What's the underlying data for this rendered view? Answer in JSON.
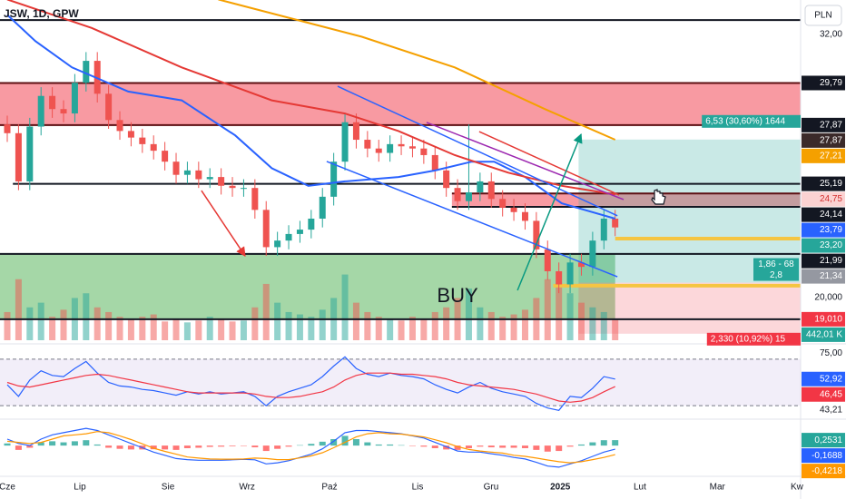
{
  "chart_data": {
    "type": "candlestick",
    "title": "JSW, 1D, GPW",
    "currency": "PLN",
    "xlim": [
      -2.58,
      281.9
    ],
    "xticks": [
      {
        "value": 0,
        "label": "Cze"
      },
      {
        "value": 25.8,
        "label": "Lip"
      },
      {
        "value": 57.1,
        "label": "Sie"
      },
      {
        "value": 85.2,
        "label": "Wrz"
      },
      {
        "value": 114.5,
        "label": "Paź"
      },
      {
        "value": 145.8,
        "label": "Lis"
      },
      {
        "value": 171.9,
        "label": "Gru"
      },
      {
        "value": 196.5,
        "label": "2025"
      },
      {
        "value": 224.8,
        "label": "Lut"
      },
      {
        "value": 252.3,
        "label": "Mar"
      },
      {
        "value": 280.6,
        "label": "Kw"
      }
    ],
    "ylim": [
      17.97,
      33.37
    ],
    "x": [
      0,
      4,
      8,
      12,
      16,
      20,
      24,
      28,
      32,
      36,
      40,
      44,
      48,
      52,
      56,
      60,
      64,
      68,
      72,
      76,
      80,
      84,
      88,
      92,
      96,
      100,
      104,
      108,
      112,
      116,
      120,
      124,
      128,
      132,
      136,
      140,
      144,
      148,
      152,
      156,
      160,
      164,
      168,
      172,
      176,
      180,
      184,
      188,
      192,
      196,
      200,
      204,
      208,
      212,
      216
    ],
    "open": [
      27.9,
      27.5,
      25.3,
      27.8,
      29.2,
      28.6,
      28.4,
      29.8,
      30.8,
      29.3,
      28.1,
      27.6,
      27.3,
      27.0,
      26.7,
      26.2,
      25.6,
      25.8,
      25.4,
      25.5,
      25.1,
      25.0,
      25.0,
      24.0,
      22.3,
      22.6,
      22.9,
      23.1,
      23.6,
      24.6,
      26.2,
      28.0,
      27.2,
      26.8,
      26.6,
      27.0,
      26.9,
      26.8,
      26.5,
      25.8,
      25.0,
      24.4,
      24.8,
      25.3,
      24.5,
      24.1,
      23.9,
      23.5,
      22.2,
      21.2,
      20.6,
      21.6,
      21.4,
      22.6,
      23.6
    ],
    "high": [
      28.3,
      27.9,
      28.2,
      29.6,
      29.6,
      29.0,
      30.2,
      31.2,
      31.2,
      29.7,
      28.5,
      28.0,
      27.7,
      27.4,
      27.1,
      26.6,
      26.2,
      26.2,
      25.9,
      25.9,
      25.5,
      25.4,
      25.4,
      24.4,
      23.0,
      23.3,
      23.5,
      24.0,
      25.0,
      26.6,
      28.4,
      28.4,
      27.6,
      27.2,
      27.4,
      27.4,
      27.3,
      27.2,
      26.9,
      26.2,
      25.4,
      27.9,
      25.7,
      25.7,
      24.9,
      24.5,
      24.3,
      23.9,
      22.6,
      21.6,
      22.0,
      22.0,
      23.0,
      24.0,
      24.0
    ],
    "low": [
      27.1,
      24.9,
      24.9,
      27.4,
      28.2,
      28.0,
      28.0,
      29.4,
      28.9,
      27.7,
      27.2,
      26.9,
      26.6,
      26.3,
      25.8,
      25.2,
      25.2,
      25.0,
      25.0,
      24.7,
      24.6,
      24.6,
      23.6,
      21.9,
      21.9,
      22.2,
      22.5,
      22.7,
      23.2,
      24.2,
      25.8,
      26.8,
      26.4,
      26.2,
      26.2,
      26.5,
      26.4,
      26.1,
      25.4,
      24.6,
      24.0,
      24.0,
      24.4,
      24.1,
      23.7,
      23.5,
      23.1,
      21.8,
      20.8,
      20.2,
      20.2,
      21.0,
      21.0,
      22.2,
      22.8
    ],
    "close": [
      27.5,
      25.3,
      27.8,
      29.2,
      28.6,
      28.4,
      29.8,
      30.8,
      29.3,
      28.1,
      27.6,
      27.3,
      27.0,
      26.7,
      26.2,
      25.6,
      25.8,
      25.4,
      25.5,
      25.1,
      25.0,
      25.0,
      24.0,
      22.3,
      22.6,
      22.9,
      23.1,
      23.6,
      24.6,
      26.2,
      28.0,
      27.2,
      26.8,
      26.6,
      27.0,
      26.9,
      26.8,
      26.5,
      25.8,
      25.0,
      24.4,
      24.8,
      25.3,
      24.5,
      24.1,
      23.9,
      23.5,
      22.2,
      21.2,
      20.6,
      21.6,
      21.4,
      22.6,
      23.6,
      23.2
    ],
    "up_color": "#26a69a",
    "down_color": "#ef5350",
    "moving_averages": [
      {
        "color": "#2962ff",
        "x": [
          0,
          10,
          23,
          43,
          62,
          81,
          94,
          107,
          120,
          139,
          152,
          165,
          173,
          184,
          197,
          216
        ],
        "values": [
          32.9,
          31.7,
          30.5,
          29.4,
          29.0,
          27.4,
          25.9,
          25.1,
          25.3,
          25.5,
          25.8,
          26.2,
          26.2,
          25.5,
          24.3,
          23.6
        ]
      },
      {
        "color": "#e53935",
        "x": [
          0,
          30,
          62,
          94,
          120,
          139,
          159,
          178,
          197,
          216
        ],
        "values": [
          33.6,
          32.3,
          30.5,
          29.0,
          28.4,
          27.6,
          26.5,
          25.7,
          25.1,
          24.7
        ]
      },
      {
        "color": "#f5a000",
        "x": [
          75,
          126,
          159,
          191,
          216
        ],
        "values": [
          33.6,
          31.9,
          30.5,
          28.6,
          27.2
        ]
      }
    ],
    "volume": {
      "ylim": [
        0,
        1450
      ],
      "values": [
        600,
        1300,
        700,
        800,
        500,
        650,
        900,
        1000,
        700,
        600,
        500,
        450,
        500,
        550,
        400,
        450,
        380,
        420,
        500,
        450,
        400,
        420,
        700,
        1200,
        800,
        600,
        550,
        500,
        650,
        900,
        1400,
        800,
        600,
        500,
        450,
        420,
        500,
        450,
        600,
        700,
        900,
        1100,
        700,
        600,
        500,
        550,
        650,
        900,
        1300,
        1200,
        1000,
        800,
        700,
        600,
        442.01
      ]
    },
    "rsi": {
      "ylim": [
        20,
        80
      ],
      "bands": [
        30,
        70
      ],
      "band_color": "#7e57c2",
      "series": [
        {
          "color": "#2962ff",
          "values": [
            48,
            38,
            52,
            60,
            56,
            55,
            62,
            68,
            58,
            50,
            47,
            46,
            44,
            43,
            41,
            39,
            42,
            40,
            42,
            40,
            41,
            42,
            38,
            30,
            38,
            42,
            45,
            48,
            55,
            64,
            72,
            62,
            57,
            55,
            58,
            56,
            55,
            53,
            48,
            44,
            41,
            46,
            50,
            45,
            42,
            40,
            38,
            32,
            28,
            26,
            38,
            37,
            45,
            55,
            52.92
          ]
        },
        {
          "color": "#f23645",
          "values": [
            50,
            47,
            46,
            48,
            50,
            52,
            54,
            56,
            57,
            56,
            54,
            52,
            50,
            48,
            46,
            44,
            42,
            41,
            41,
            41,
            41,
            41,
            40,
            38,
            37,
            37,
            38,
            40,
            42,
            46,
            52,
            56,
            58,
            58,
            58,
            57,
            57,
            56,
            55,
            53,
            50,
            48,
            47,
            46,
            45,
            44,
            42,
            40,
            37,
            34,
            33,
            34,
            37,
            42,
            46.45
          ]
        }
      ]
    },
    "macd": {
      "ylim": [
        -1.3,
        1.1
      ],
      "up_color": "#26a69a",
      "down_color": "#ff5252",
      "histogram": [
        0.1,
        -0.2,
        -0.1,
        0.15,
        0.2,
        0.15,
        0.2,
        0.25,
        0.05,
        -0.1,
        -0.15,
        -0.18,
        -0.18,
        -0.17,
        -0.18,
        -0.2,
        -0.12,
        -0.1,
        -0.06,
        -0.05,
        -0.03,
        -0.02,
        -0.08,
        -0.25,
        -0.15,
        -0.05,
        0.02,
        0.08,
        0.18,
        0.3,
        0.45,
        0.3,
        0.15,
        0.05,
        0.05,
        0.02,
        -0.02,
        -0.05,
        -0.12,
        -0.18,
        -0.2,
        -0.12,
        -0.05,
        -0.08,
        -0.1,
        -0.1,
        -0.12,
        -0.2,
        -0.28,
        -0.25,
        -0.05,
        0.05,
        0.15,
        0.25,
        0.2531
      ],
      "series": [
        {
          "color": "#2962ff",
          "values": [
            0.3,
            0.1,
            0,
            0.3,
            0.5,
            0.6,
            0.7,
            0.8,
            0.7,
            0.5,
            0.3,
            0.1,
            -0.1,
            -0.3,
            -0.45,
            -0.6,
            -0.65,
            -0.68,
            -0.68,
            -0.68,
            -0.66,
            -0.64,
            -0.66,
            -0.85,
            -0.8,
            -0.7,
            -0.55,
            -0.4,
            -0.15,
            0.2,
            0.6,
            0.7,
            0.7,
            0.65,
            0.6,
            0.55,
            0.45,
            0.35,
            0.15,
            -0.05,
            -0.25,
            -0.3,
            -0.3,
            -0.38,
            -0.45,
            -0.55,
            -0.62,
            -0.78,
            -0.95,
            -1.0,
            -0.85,
            -0.7,
            -0.5,
            -0.3,
            -0.1688
          ]
        },
        {
          "color": "#ff9800",
          "values": [
            0.2,
            0.15,
            0.1,
            0.15,
            0.3,
            0.45,
            0.5,
            0.55,
            0.65,
            0.6,
            0.45,
            0.28,
            0.08,
            -0.12,
            -0.27,
            -0.4,
            -0.53,
            -0.58,
            -0.62,
            -0.63,
            -0.63,
            -0.62,
            -0.58,
            -0.6,
            -0.65,
            -0.65,
            -0.57,
            -0.48,
            -0.33,
            -0.1,
            0.15,
            0.4,
            0.55,
            0.6,
            0.55,
            0.53,
            0.47,
            0.4,
            0.27,
            0.13,
            -0.05,
            -0.18,
            -0.25,
            -0.3,
            -0.35,
            -0.45,
            -0.5,
            -0.58,
            -0.67,
            -0.75,
            -0.8,
            -0.75,
            -0.65,
            -0.55,
            -0.4218
          ]
        }
      ]
    },
    "zones": [
      {
        "from": 27.87,
        "to": 29.79,
        "start": -2.58,
        "end": 281.9,
        "color": "#f2364580"
      },
      {
        "from": 24.14,
        "to": 24.75,
        "start": 158,
        "end": 281.9,
        "color": "#f2364580"
      },
      {
        "from": 19.01,
        "to": 21.99,
        "start": -2.58,
        "end": 216,
        "color": "#4caf5080"
      }
    ],
    "levels": [
      {
        "value": 32.66,
        "start": -2.58,
        "end": 281.9,
        "color": "#131722"
      },
      {
        "value": 29.79,
        "start": -2.58,
        "end": 281.9,
        "color": "#5d0f12"
      },
      {
        "value": 27.87,
        "start": -2.58,
        "end": 281.9,
        "color": "#5d0f12"
      },
      {
        "value": 25.19,
        "start": 2,
        "end": 281.9,
        "color": "#131722"
      },
      {
        "value": 24.75,
        "start": 158,
        "end": 281.9,
        "color": "#5d0f12"
      },
      {
        "value": 24.14,
        "start": 158,
        "end": 281.9,
        "color": "#131722"
      },
      {
        "value": 21.99,
        "start": -2.58,
        "end": 281.9,
        "color": "#131722"
      },
      {
        "value": 19.01,
        "start": -2.58,
        "end": 281.9,
        "color": "#131722"
      },
      {
        "value": 22.69,
        "start": 216,
        "end": 281.9,
        "color": "#f5c542"
      },
      {
        "value": 20.54,
        "start": 194,
        "end": 281.9,
        "color": "#f5c542"
      }
    ],
    "trendlines": [
      {
        "x": [
          117.4,
          216.8
        ],
        "y": [
          29.64,
          23.73
        ],
        "color": "#2962ff"
      },
      {
        "x": [
          113.5,
          216.8
        ],
        "y": [
          26.21,
          20.95
        ],
        "color": "#2962ff"
      },
      {
        "x": [
          149,
          219
        ],
        "y": [
          27.99,
          24.47
        ],
        "color": "#9c27b0"
      },
      {
        "x": [
          167.7,
          217.4
        ],
        "y": [
          27.57,
          24.68
        ],
        "color": "#e53935"
      }
    ],
    "arrows": [
      {
        "x": [
          69,
          84.5
        ],
        "y": [
          24.88,
          21.9
        ],
        "color": "#e53935"
      },
      {
        "x": [
          181.3,
          203.9
        ],
        "y": [
          20.33,
          27.45
        ],
        "color": "#089981"
      }
    ],
    "position": {
      "start": 203,
      "end": 281.9,
      "target": 27.21,
      "entry": 20.68,
      "stop": 18.35,
      "target_color": "#26a69a",
      "stop_color": "#f23645",
      "labels": [
        {
          "at": "target",
          "text": "6,53 (30,60%) 1644",
          "color": "#26a69a"
        },
        {
          "at": "entry",
          "text": "1,86 - 68",
          "color": "#26a69a"
        },
        {
          "at": "entry",
          "text": "2,8",
          "color": "#26a69a"
        },
        {
          "at": "stop",
          "text": "2,330 (10,92%) 15",
          "color": "#f23645"
        }
      ]
    },
    "annotations": [
      {
        "text": "BUY",
        "x": 160,
        "y": 20.04
      }
    ],
    "axis_labels": [
      {
        "pane": "main",
        "value": 32,
        "label": "32,00"
      },
      {
        "pane": "main",
        "value": 29.79,
        "label": "29,79",
        "bg": "#131722"
      },
      {
        "pane": "main",
        "value": 27.87,
        "label": "27,87",
        "bg": "#131722"
      },
      {
        "pane": "main",
        "value": 27.87,
        "label": "27,87",
        "bg": "#3b2a2a"
      },
      {
        "pane": "main",
        "value": 27.21,
        "label": "27,21",
        "bg": "#f5a000"
      },
      {
        "pane": "main",
        "value": 25.19,
        "label": "25,19",
        "bg": "#131722"
      },
      {
        "pane": "main",
        "value": 24.75,
        "label": "24,75",
        "bg": "#fbd2d2",
        "fg": "#d32f2f"
      },
      {
        "pane": "main",
        "value": 24.14,
        "label": "24,14",
        "bg": "#131722"
      },
      {
        "pane": "main",
        "value": 23.79,
        "label": "23,79",
        "bg": "#2962ff"
      },
      {
        "pane": "main",
        "value": 23.2,
        "label": "23,20",
        "bg": "#26a69a"
      },
      {
        "pane": "main",
        "value": 21.99,
        "label": "21,99",
        "bg": "#131722"
      },
      {
        "pane": "main",
        "value": 21.34,
        "label": "21,34",
        "bg": "#9598a1"
      },
      {
        "pane": "main",
        "value": 20,
        "label": "20,000"
      },
      {
        "pane": "volume",
        "value": 442.01,
        "label": "442,01 K",
        "bg": "#26a69a"
      },
      {
        "pane": "main",
        "value": 19.01,
        "label": "19,010",
        "bg": "#f23645"
      },
      {
        "pane": "rsi",
        "value": 75,
        "label": "75,00"
      },
      {
        "pane": "rsi",
        "value": 52.92,
        "label": "52,92",
        "bg": "#2962ff"
      },
      {
        "pane": "rsi",
        "value": 46.45,
        "label": "46,45",
        "bg": "#f23645"
      },
      {
        "pane": "rsi",
        "value": 43.21,
        "label": "43,21"
      },
      {
        "pane": "macd",
        "value": 0.2531,
        "label": "0,2531",
        "bg": "#26a69a"
      },
      {
        "pane": "macd",
        "value": -0.1688,
        "label": "-0,1688",
        "bg": "#2962ff"
      },
      {
        "pane": "macd",
        "value": -0.4218,
        "label": "-0,4218",
        "bg": "#ff9800"
      }
    ]
  }
}
